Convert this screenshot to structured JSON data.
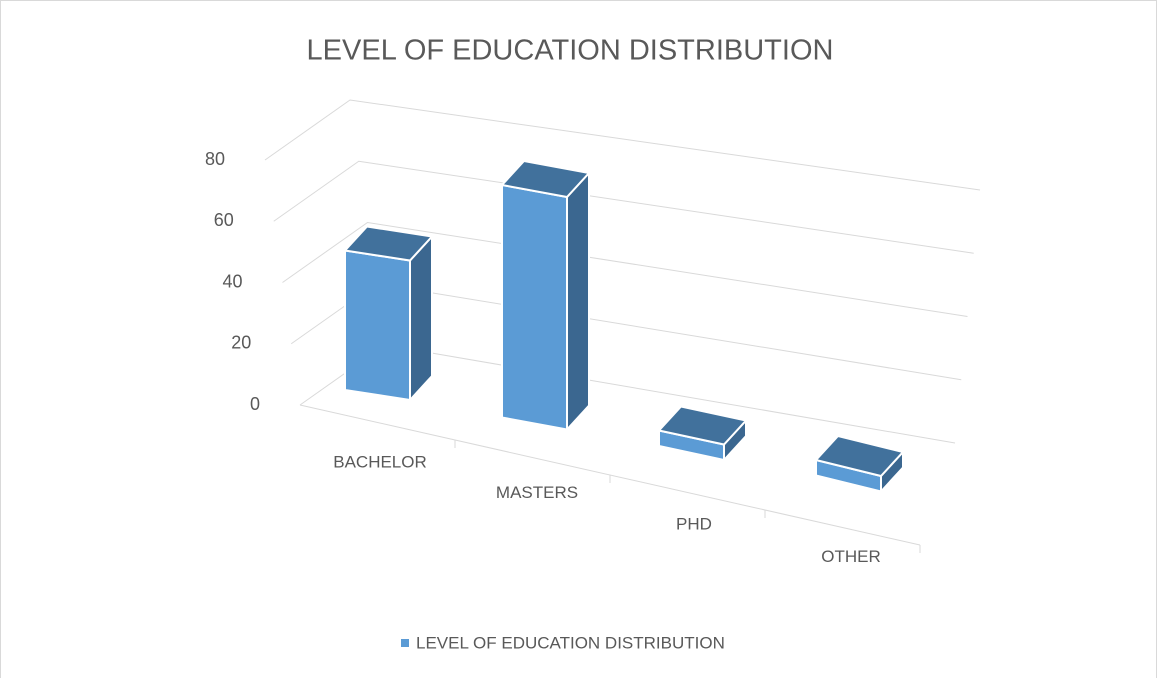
{
  "chart_data": {
    "type": "bar",
    "title": "LEVEL OF EDUCATION DISTRIBUTION",
    "categories": [
      "BACHELOR",
      "MASTERS",
      "PHD",
      "OTHER"
    ],
    "series": [
      {
        "name": "LEVEL OF EDUCATION DISTRIBUTION",
        "color": "#5b9bd5",
        "values": [
          45,
          75,
          5,
          5
        ]
      }
    ],
    "ylim": [
      0,
      80
    ],
    "yticks": [
      0,
      20,
      40,
      60,
      80
    ],
    "grid": true,
    "legend": "bottom"
  }
}
